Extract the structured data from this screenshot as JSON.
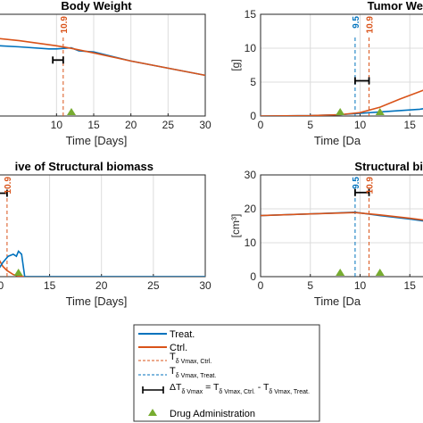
{
  "chart_data": [
    {
      "type": "line",
      "title": "Body Weight",
      "xlabel": "Time [Days]",
      "ylabel": "",
      "xlim": [
        0,
        30
      ],
      "ylim": [
        0,
        1
      ],
      "xticks": [
        10,
        15,
        20,
        25,
        30
      ],
      "yticks": [],
      "grid": true,
      "markers": [
        {
          "label": "10.9",
          "x": 10.9,
          "color": "#d95319"
        }
      ],
      "delta_bar": {
        "x1": 9.5,
        "x2": 10.9,
        "y": 0.55
      },
      "drug_days": [
        12
      ],
      "series": [
        {
          "name": "Treat.",
          "color": "#0072bd",
          "x": [
            0,
            5,
            9,
            10,
            11,
            12,
            13,
            15,
            20,
            25,
            30
          ],
          "y": [
            0.7,
            0.68,
            0.66,
            0.66,
            0.665,
            0.67,
            0.64,
            0.63,
            0.54,
            0.47,
            0.4
          ]
        },
        {
          "name": "Ctrl.",
          "color": "#d95319",
          "x": [
            0,
            5,
            10,
            12,
            15,
            20,
            25,
            30
          ],
          "y": [
            0.78,
            0.74,
            0.69,
            0.665,
            0.62,
            0.54,
            0.47,
            0.4
          ]
        }
      ]
    },
    {
      "type": "line",
      "title": "Tumor We",
      "xlabel": "Time [Da",
      "ylabel": "[g]",
      "xlim": [
        0,
        17.4
      ],
      "ylim": [
        0,
        15
      ],
      "xticks": [
        0,
        5,
        10,
        15
      ],
      "yticks": [
        0,
        5,
        10,
        15
      ],
      "grid": true,
      "markers": [
        {
          "label": "9.5",
          "x": 9.5,
          "color": "#0072bd"
        },
        {
          "label": "10.9",
          "x": 10.9,
          "color": "#d95319"
        }
      ],
      "delta_bar": {
        "x1": 9.5,
        "x2": 10.9,
        "y": 5.2
      },
      "drug_days": [
        8,
        12
      ],
      "series": [
        {
          "name": "Treat.",
          "color": "#0072bd",
          "x": [
            0,
            5,
            8,
            10,
            12,
            14,
            16,
            17.4
          ],
          "y": [
            0,
            0.05,
            0.2,
            0.4,
            0.6,
            0.8,
            1.0,
            1.3
          ]
        },
        {
          "name": "Ctrl.",
          "color": "#d95319",
          "x": [
            0,
            5,
            8,
            10,
            12,
            14,
            16,
            17.4
          ],
          "y": [
            0,
            0.05,
            0.2,
            0.5,
            1.3,
            2.5,
            3.6,
            4.4
          ]
        }
      ]
    },
    {
      "type": "line",
      "title": "ive of Structural biomass",
      "xlabel": "Time [Days]",
      "ylabel": "",
      "xlim": [
        8.5,
        30
      ],
      "ylim": [
        0,
        1
      ],
      "xticks": [
        10,
        15,
        20,
        25,
        30
      ],
      "yticks": [],
      "grid": true,
      "markers": [
        {
          "label": "10.9",
          "x": 10.9,
          "color": "#d95319"
        }
      ],
      "delta_bar": {
        "x1": 9.5,
        "x2": 10.9,
        "y": 0.82
      },
      "drug_days": [
        12
      ],
      "series": [
        {
          "name": "Ctrl.",
          "color": "#d95319",
          "x": [
            8.5,
            9.0,
            9.5,
            10.0,
            10.5,
            10.9,
            11.5,
            12.0,
            12.5,
            30
          ],
          "y": [
            0.42,
            0.38,
            0.28,
            0.19,
            0.1,
            0.06,
            0.02,
            0.005,
            0.0,
            0.0
          ]
        },
        {
          "name": "Treat.",
          "color": "#0072bd",
          "x": [
            8.5,
            9.5,
            10.0,
            10.5,
            11.0,
            11.5,
            11.8,
            12.0,
            12.3,
            12.6,
            30
          ],
          "y": [
            0.0,
            0.0,
            0.06,
            0.14,
            0.2,
            0.22,
            0.2,
            0.25,
            0.22,
            0.0,
            0.0
          ]
        }
      ]
    },
    {
      "type": "line",
      "title": "Structural bi",
      "xlabel": "Time [Da",
      "ylabel": "[cm³]",
      "xlim": [
        0,
        17.4
      ],
      "ylim": [
        0,
        30
      ],
      "xticks": [
        0,
        5,
        10,
        15
      ],
      "yticks": [
        0,
        10,
        20,
        30
      ],
      "grid": true,
      "markers": [
        {
          "label": "9.5",
          "x": 9.5,
          "color": "#0072bd"
        },
        {
          "label": "10.9",
          "x": 10.9,
          "color": "#d95319"
        }
      ],
      "delta_bar": {
        "x1": 9.5,
        "x2": 10.9,
        "y": 24.8
      },
      "drug_days": [
        8,
        12
      ],
      "series": [
        {
          "name": "Treat.",
          "color": "#0072bd",
          "x": [
            0,
            5,
            9.5,
            12,
            15,
            17.4
          ],
          "y": [
            18,
            18.5,
            19,
            18,
            17,
            16
          ]
        },
        {
          "name": "Ctrl.",
          "color": "#d95319",
          "x": [
            0,
            5,
            9.5,
            12,
            15,
            17.4
          ],
          "y": [
            18,
            18.5,
            18.9,
            18.2,
            17.2,
            16.3
          ]
        }
      ]
    }
  ],
  "legend": {
    "treat": "Treat.",
    "ctrl": "Ctrl.",
    "t_ctrl_main": "T",
    "t_ctrl_sub": "δ Vmax, Ctrl.",
    "t_treat_main": "T",
    "t_treat_sub": "δ Vmax, Treat.",
    "delta_main": "ΔT",
    "delta_sub1": "δ Vmax",
    "delta_eq": " = T",
    "delta_sub2": "δ Vmax, Ctrl.",
    "delta_minus": " - T",
    "delta_sub3": "δ Vmax, Treat.",
    "drug": "Drug Administration"
  },
  "colors": {
    "treat": "#0072bd",
    "ctrl": "#d95319",
    "drug": "#77ac30",
    "grid": "#dcdcdc"
  }
}
